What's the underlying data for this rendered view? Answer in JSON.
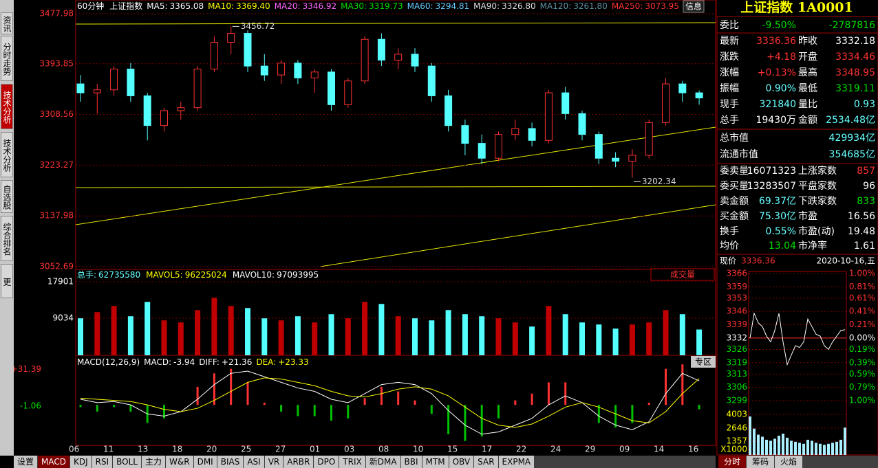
{
  "sidebar": {
    "tabs": [
      "资讯",
      "分时走势",
      "技术分析",
      "技术分析",
      "自选股",
      "综合排名",
      "更多.."
    ]
  },
  "main": {
    "period": "60分钟",
    "name": "上证指数",
    "info_button": "信息",
    "ma": [
      {
        "name": "MA5:",
        "value": "3365.08",
        "color": "#ffffff"
      },
      {
        "name": "MA10:",
        "value": "3369.40",
        "color": "#ffff00"
      },
      {
        "name": "MA20:",
        "value": "3346.92",
        "color": "#ff66ff"
      },
      {
        "name": "MA30:",
        "value": "3319.73",
        "color": "#00e000"
      },
      {
        "name": "MA60:",
        "value": "3294.81",
        "color": "#66ccff"
      },
      {
        "name": "MA90:",
        "value": "3326.80",
        "color": "#dddddd"
      },
      {
        "name": "MA120:",
        "value": "3261.80",
        "color": "#5f8fa0"
      },
      {
        "name": "MA250:",
        "value": "3073.95",
        "color": "#ff3232"
      }
    ],
    "ylim": [
      3048.07,
      3491.85
    ],
    "yticks": [
      3477.98,
      3393.85,
      3308.56,
      3223.27,
      3137.98,
      3052.69
    ],
    "x_labels": [
      "06",
      "11",
      "13",
      "18",
      "20",
      "25",
      "27",
      "01",
      "03",
      "08",
      "10",
      "15",
      "17",
      "22",
      "24",
      "29",
      "09",
      "14",
      "16"
    ],
    "candles": {
      "open": [
        3360,
        3345,
        3350,
        3385,
        3340,
        3290,
        3315,
        3320,
        3385,
        3430,
        3445,
        3390,
        3375,
        3395,
        3370,
        3380,
        3325,
        3365,
        3435,
        3400,
        3410,
        3390,
        3340,
        3290,
        3260,
        3235,
        3275,
        3285,
        3265,
        3345,
        3310,
        3275,
        3235,
        3230,
        3240,
        3295,
        3360,
        3345
      ],
      "high": [
        3375,
        3360,
        3390,
        3395,
        3345,
        3320,
        3330,
        3390,
        3440,
        3456.72,
        3450,
        3410,
        3400,
        3400,
        3385,
        3385,
        3370,
        3440,
        3445,
        3420,
        3420,
        3395,
        3350,
        3300,
        3275,
        3280,
        3300,
        3295,
        3350,
        3355,
        3315,
        3280,
        3245,
        3250,
        3300,
        3370,
        3365,
        3348.95
      ],
      "low": [
        3330,
        3310,
        3340,
        3330,
        3265,
        3280,
        3300,
        3315,
        3380,
        3410,
        3380,
        3365,
        3360,
        3360,
        3345,
        3315,
        3320,
        3360,
        3390,
        3385,
        3380,
        3330,
        3280,
        3240,
        3225,
        3230,
        3265,
        3255,
        3260,
        3300,
        3265,
        3225,
        3220,
        3202.34,
        3235,
        3290,
        3330,
        3325
      ],
      "close": [
        3345,
        3350,
        3385,
        3340,
        3290,
        3315,
        3320,
        3385,
        3430,
        3445,
        3390,
        3375,
        3395,
        3370,
        3380,
        3325,
        3365,
        3435,
        3400,
        3410,
        3390,
        3340,
        3290,
        3260,
        3235,
        3275,
        3285,
        3265,
        3345,
        3310,
        3275,
        3235,
        3230,
        3240,
        3295,
        3360,
        3345,
        3336.36
      ]
    }
  },
  "volume": {
    "legend": [
      {
        "name": "总手:",
        "value": "62735580",
        "color": "#66ffff"
      },
      {
        "name": "MAVOL5:",
        "value": "96225024",
        "color": "#ffff00"
      },
      {
        "name": "MAVOL10:",
        "value": "97093995",
        "color": "#ffffff"
      }
    ],
    "button": "成交量",
    "ylim": [
      0,
      19574
    ],
    "yticks": [
      17901,
      9034
    ],
    "values": [
      9000,
      10500,
      12000,
      9500,
      13000,
      8500,
      8000,
      11000,
      14000,
      12000,
      11500,
      9000,
      8500,
      9500,
      8000,
      10000,
      9000,
      13000,
      12500,
      9500,
      9000,
      8500,
      11000,
      10000,
      9500,
      9000,
      8000,
      7000,
      12000,
      10000,
      8000,
      7500,
      6500,
      7500,
      8000,
      11000,
      10000,
      6274
    ]
  },
  "macd": {
    "title": "MACD(12,26,9)",
    "legend": [
      {
        "name": "MACD:",
        "value": "-3.94",
        "color": "#ffffff"
      },
      {
        "name": "DIFF:",
        "value": "+21.36",
        "color": "#ffffff"
      },
      {
        "name": "DEA:",
        "value": "+23.33",
        "color": "#ffff00"
      }
    ],
    "button": "专区",
    "ylim": [
      -35.91,
      42.81
    ],
    "yticks": [
      {
        "value": 31.39,
        "label": "+31.39"
      },
      -1.06
    ],
    "hist": [
      -2,
      -6,
      -2,
      -6,
      -16,
      -12,
      0,
      16,
      28,
      32,
      20,
      2,
      -6,
      -10,
      -10,
      -14,
      -12,
      6,
      16,
      12,
      4,
      -8,
      -26,
      -32,
      -28,
      -12,
      4,
      10,
      20,
      20,
      0,
      -16,
      -20,
      -16,
      2,
      32,
      36,
      -3.94
    ],
    "diff": [
      5,
      2,
      3,
      0,
      -8,
      -10,
      -6,
      5,
      18,
      28,
      30,
      25,
      20,
      15,
      12,
      5,
      2,
      10,
      18,
      20,
      18,
      10,
      -5,
      -18,
      -26,
      -24,
      -18,
      -12,
      0,
      8,
      2,
      -10,
      -18,
      -22,
      -15,
      10,
      28,
      21.36
    ],
    "dea": [
      6,
      5,
      4,
      3,
      0,
      -4,
      -6,
      -3,
      4,
      12,
      20,
      24,
      23,
      20,
      17,
      12,
      8,
      7,
      10,
      14,
      16,
      14,
      8,
      -2,
      -12,
      -18,
      -20,
      -17,
      -10,
      -2,
      2,
      -2,
      -8,
      -14,
      -16,
      -6,
      10,
      23.33
    ]
  },
  "quote": {
    "title": "上证指数 1A0001",
    "rows": [
      [
        {
          "t": "委比",
          "c": "#fff"
        },
        {
          "t": "-9.50%",
          "c": "#00e000"
        },
        {
          "t": "-2787816",
          "c": "#00e000"
        }
      ],
      [
        {
          "t": "最新",
          "c": "#fff"
        },
        {
          "t": "3336.36",
          "c": "#ff3232"
        },
        {
          "t": "昨收",
          "c": "#fff"
        },
        {
          "t": "3332.18",
          "c": "#fff"
        }
      ],
      [
        {
          "t": "涨跌",
          "c": "#fff"
        },
        {
          "t": "+4.18",
          "c": "#ff3232"
        },
        {
          "t": "开盘",
          "c": "#fff"
        },
        {
          "t": "3334.46",
          "c": "#ff3232"
        }
      ],
      [
        {
          "t": "涨幅",
          "c": "#fff"
        },
        {
          "t": "+0.13%",
          "c": "#ff3232"
        },
        {
          "t": "最高",
          "c": "#fff"
        },
        {
          "t": "3348.95",
          "c": "#ff3232"
        }
      ],
      [
        {
          "t": "振幅",
          "c": "#fff"
        },
        {
          "t": "0.90%",
          "c": "#66ffff"
        },
        {
          "t": "最低",
          "c": "#fff"
        },
        {
          "t": "3319.11",
          "c": "#00e000"
        }
      ],
      [
        {
          "t": "现手",
          "c": "#fff"
        },
        {
          "t": "321840",
          "c": "#66ffff"
        },
        {
          "t": "量比",
          "c": "#fff"
        },
        {
          "t": "0.93",
          "c": "#66ffff"
        }
      ],
      [
        {
          "t": "总手",
          "c": "#fff"
        },
        {
          "t": "19430万",
          "c": "#fff"
        },
        {
          "t": "金额",
          "c": "#fff"
        },
        {
          "t": "2534.48亿",
          "c": "#66ffff"
        }
      ],
      [
        {
          "t": "总市值",
          "c": "#fff"
        },
        {
          "t": "429934亿",
          "c": "#66ffff"
        }
      ],
      [
        {
          "t": "流通市值",
          "c": "#fff"
        },
        {
          "t": "354685亿",
          "c": "#66ffff"
        }
      ],
      [
        {
          "t": "委卖量",
          "c": "#fff"
        },
        {
          "t": "16071323",
          "c": "#fff"
        },
        {
          "t": "上涨家数",
          "c": "#fff"
        },
        {
          "t": "857",
          "c": "#ff3232"
        }
      ],
      [
        {
          "t": "委买量",
          "c": "#fff"
        },
        {
          "t": "13283507",
          "c": "#fff"
        },
        {
          "t": "平盘家数",
          "c": "#fff"
        },
        {
          "t": "96",
          "c": "#fff"
        }
      ],
      [
        {
          "t": "卖金额",
          "c": "#fff"
        },
        {
          "t": "69.37亿",
          "c": "#66ffff"
        },
        {
          "t": "下跌家数",
          "c": "#fff"
        },
        {
          "t": "833",
          "c": "#00e000"
        }
      ],
      [
        {
          "t": "买金额",
          "c": "#fff"
        },
        {
          "t": "75.30亿",
          "c": "#66ffff"
        },
        {
          "t": "市盈",
          "c": "#fff"
        },
        {
          "t": "16.56",
          "c": "#fff"
        }
      ],
      [
        {
          "t": "换手",
          "c": "#fff"
        },
        {
          "t": "0.55%",
          "c": "#66ffff"
        },
        {
          "t": "市盈(动)",
          "c": "#fff"
        },
        {
          "t": "19.48",
          "c": "#fff"
        }
      ],
      [
        {
          "t": "均价",
          "c": "#fff"
        },
        {
          "t": "13.04",
          "c": "#00e000"
        },
        {
          "t": "市净率",
          "c": "#fff"
        },
        {
          "t": "1.61",
          "c": "#fff"
        }
      ]
    ]
  },
  "intraday": {
    "label": "现价",
    "price": "3336.36",
    "date": "2020-10-16,五",
    "ylim": [
      3299,
      3366
    ],
    "yticks": [
      3366,
      3359,
      3353,
      3346,
      3339,
      3332,
      3326,
      3319,
      3313,
      3306,
      3299
    ],
    "pct_labels": [
      "1.00%",
      "0.81%",
      "0.61%",
      "0.41%",
      "0.21%",
      "0.00%",
      "0.19%",
      "0.39%",
      "0.59%",
      "0.79%",
      "1.00%"
    ],
    "prices": [
      3332,
      3345,
      3340,
      3338,
      3333,
      3330,
      3336,
      3345,
      3330,
      3318,
      3323,
      3328,
      3327,
      3330,
      3342,
      3338,
      3334,
      3333,
      3328,
      3326,
      3330,
      3333,
      3336,
      3336.36
    ],
    "vol_ylim": [
      0,
      4003
    ],
    "vol_ticks": [
      4003,
      2646,
      1357
    ],
    "vol_unit": "X1000",
    "volumes": [
      3800,
      2600,
      2000,
      1800,
      1500,
      1400,
      1600,
      1900,
      2100,
      1700,
      1400,
      1300,
      1200,
      1100,
      1500,
      1400,
      1200,
      1100,
      1000,
      1100,
      1200,
      1300,
      1500,
      2700
    ]
  },
  "bottom_tabs": [
    "设置",
    "MACD",
    "KDJ",
    "RSI",
    "BOLL",
    "主力",
    "W&R",
    "DMI",
    "BIAS",
    "ASI",
    "VR",
    "ARBR",
    "DPO",
    "TRIX",
    "新DMA",
    "BBI",
    "MTM",
    "OBV",
    "SAR",
    "EXPMA"
  ],
  "right_tabs": [
    "分时",
    "筹码",
    "火焰"
  ]
}
